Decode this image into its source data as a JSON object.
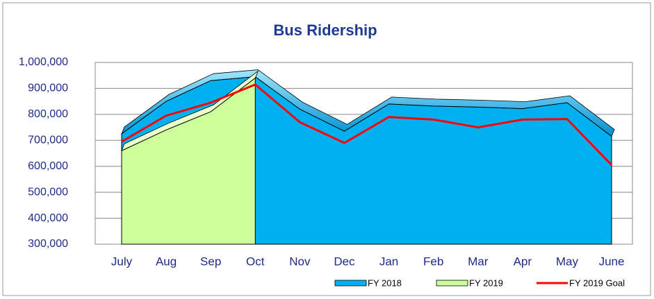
{
  "chart_data": {
    "type": "area",
    "title": "Bus Ridership",
    "categories": [
      "July",
      "Aug",
      "Sep",
      "Oct",
      "Nov",
      "Dec",
      "Jan",
      "Feb",
      "Mar",
      "Apr",
      "May",
      "June"
    ],
    "series": [
      {
        "name": "FY 2018",
        "kind": "area",
        "color": "#00b0f0",
        "values": [
          725000,
          850000,
          930000,
          945000,
          820000,
          735000,
          840000,
          832000,
          828000,
          822000,
          845000,
          715000
        ]
      },
      {
        "name": "FY 2019",
        "kind": "area",
        "color": "#ccff99",
        "values": [
          660000,
          740000,
          810000,
          940000,
          null,
          null,
          null,
          null,
          null,
          null,
          null,
          null
        ]
      },
      {
        "name": "FY 2019 Goal",
        "kind": "line",
        "color": "#ff0000",
        "values": [
          695000,
          795000,
          845000,
          915000,
          770000,
          690000,
          790000,
          780000,
          750000,
          780000,
          782000,
          605000
        ]
      }
    ],
    "ylim": [
      300000,
      1000000
    ],
    "yticks": [
      {
        "value": 300000,
        "label": "300,000"
      },
      {
        "value": 400000,
        "label": "400,000"
      },
      {
        "value": 500000,
        "label": "500,000"
      },
      {
        "value": 600000,
        "label": "600,000"
      },
      {
        "value": 700000,
        "label": "700,000"
      },
      {
        "value": 800000,
        "label": "800,000"
      },
      {
        "value": 900000,
        "label": "900,000"
      },
      {
        "value": 1000000,
        "label": "1,000,000"
      }
    ],
    "grid": true
  }
}
